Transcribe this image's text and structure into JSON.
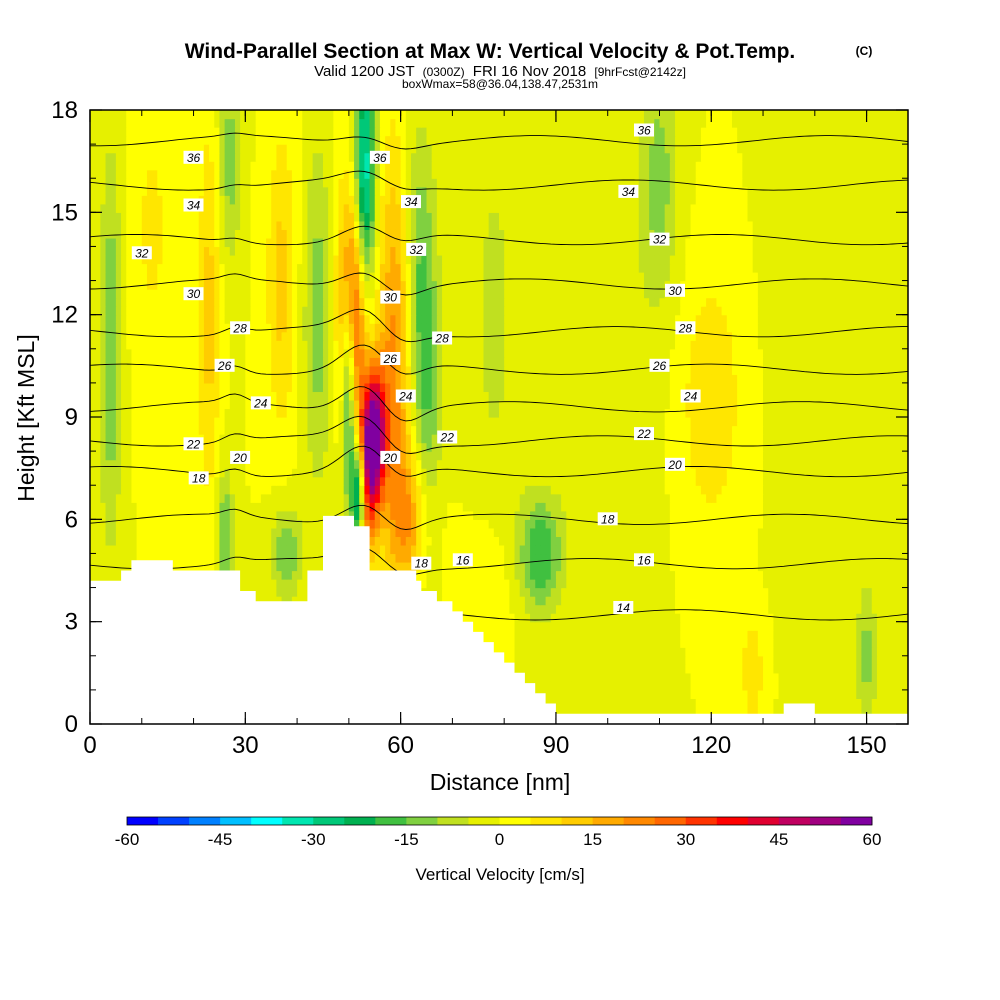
{
  "header": {
    "title": "Wind-Parallel Section at Max W: Vertical Velocity & Pot.Temp.",
    "copyright": "(C)",
    "valid_main": "Valid 1200 JST",
    "valid_utc": "(0300Z)",
    "valid_date": "FRI 16 Nov 2018",
    "forecast": "[9hrFcst@2142z]",
    "box_info": "boxWmax=58@36.04,138.47,2531m"
  },
  "chart_data": {
    "type": "heatmap",
    "xlabel": "Distance [nm]",
    "ylabel": "Height [Kft MSL]",
    "xlim": [
      0,
      158
    ],
    "ylim": [
      0,
      18
    ],
    "x_ticks": [
      "0",
      "30",
      "60",
      "90",
      "120",
      "150"
    ],
    "y_ticks": [
      "0",
      "3",
      "6",
      "9",
      "12",
      "15",
      "18"
    ],
    "x_tick_values": [
      0,
      30,
      60,
      90,
      120,
      150
    ],
    "y_tick_values": [
      0,
      3,
      6,
      9,
      12,
      15,
      18
    ],
    "colorbar": {
      "label": "Vertical Velocity [cm/s]",
      "range": [
        -60,
        60
      ],
      "tick_labels": [
        "-60",
        "-45",
        "-30",
        "-15",
        "0",
        "15",
        "30",
        "45",
        "60"
      ],
      "tick_values": [
        -60,
        -45,
        -30,
        -15,
        0,
        15,
        30,
        45,
        60
      ],
      "colors": [
        "#0000ff",
        "#0040ff",
        "#0080ff",
        "#00bfff",
        "#00ffff",
        "#00e6b0",
        "#00c878",
        "#00b050",
        "#40c040",
        "#80d040",
        "#c0e020",
        "#e6f000",
        "#ffff00",
        "#ffe600",
        "#ffcc00",
        "#ffaa00",
        "#ff8800",
        "#ff6600",
        "#ff3300",
        "#ff0000",
        "#e00030",
        "#c00060",
        "#a00080",
        "#8000a0"
      ]
    },
    "terrain_top": [
      [
        0,
        4.2
      ],
      [
        6,
        4.2
      ],
      [
        6,
        4.5
      ],
      [
        8,
        4.5
      ],
      [
        8,
        4.8
      ],
      [
        16,
        4.8
      ],
      [
        16,
        4.5
      ],
      [
        29,
        4.5
      ],
      [
        29,
        3.9
      ],
      [
        32,
        3.9
      ],
      [
        32,
        3.6
      ],
      [
        42,
        3.6
      ],
      [
        42,
        4.5
      ],
      [
        45,
        4.5
      ],
      [
        45,
        6.1
      ],
      [
        51,
        6.1
      ],
      [
        51,
        5.8
      ],
      [
        54,
        5.8
      ],
      [
        54,
        4.5
      ],
      [
        63,
        4.5
      ],
      [
        63,
        4.2
      ],
      [
        64,
        4.2
      ],
      [
        64,
        3.9
      ],
      [
        67,
        3.9
      ],
      [
        67,
        3.6
      ],
      [
        70,
        3.6
      ],
      [
        70,
        3.3
      ],
      [
        72,
        3.3
      ],
      [
        72,
        3.0
      ],
      [
        74,
        3.0
      ],
      [
        74,
        2.7
      ],
      [
        76,
        2.7
      ],
      [
        76,
        2.4
      ],
      [
        78,
        2.4
      ],
      [
        78,
        2.1
      ],
      [
        80,
        2.1
      ],
      [
        80,
        1.8
      ],
      [
        82,
        1.8
      ],
      [
        82,
        1.5
      ],
      [
        84,
        1.5
      ],
      [
        84,
        1.2
      ],
      [
        86,
        1.2
      ],
      [
        86,
        0.9
      ],
      [
        88,
        0.9
      ],
      [
        88,
        0.6
      ],
      [
        90,
        0.6
      ],
      [
        90,
        0.3
      ],
      [
        134,
        0.3
      ],
      [
        134,
        0.6
      ],
      [
        140,
        0.6
      ],
      [
        140,
        0.3
      ],
      [
        158,
        0.3
      ]
    ],
    "velocity_features": [
      {
        "x": 51,
        "y": 12.2,
        "w": 45,
        "sx": 2.0,
        "sy": 2.5
      },
      {
        "x": 55,
        "y": 8.5,
        "w": 58,
        "sx": 1.5,
        "sy": 1.3
      },
      {
        "x": 53,
        "y": 7.0,
        "w": 40,
        "sx": 1.5,
        "sy": 1.5
      },
      {
        "x": 52,
        "y": 6.8,
        "w": -55,
        "sx": 1.0,
        "sy": 1.2
      },
      {
        "x": 53,
        "y": 15.5,
        "w": -40,
        "sx": 1.5,
        "sy": 3.0
      },
      {
        "x": 50,
        "y": 10.0,
        "w": -35,
        "sx": 1.0,
        "sy": 2.5
      },
      {
        "x": 59,
        "y": 11.0,
        "w": 22,
        "sx": 2.5,
        "sy": 4.0
      },
      {
        "x": 62,
        "y": 6.0,
        "w": 18,
        "sx": 3.0,
        "sy": 1.5
      },
      {
        "x": 65,
        "y": 9.5,
        "w": -15,
        "sx": 2.0,
        "sy": 4.0
      },
      {
        "x": 63,
        "y": 13.5,
        "w": -12,
        "sx": 2.0,
        "sy": 3.0
      },
      {
        "x": 44,
        "y": 12.0,
        "w": -13,
        "sx": 2.0,
        "sy": 3.5
      },
      {
        "x": 38,
        "y": 5.0,
        "w": -15,
        "sx": 2.0,
        "sy": 1.0
      },
      {
        "x": 26,
        "y": 5.5,
        "w": -15,
        "sx": 1.2,
        "sy": 1.5
      },
      {
        "x": 27,
        "y": 16.5,
        "w": -13,
        "sx": 1.5,
        "sy": 2.0
      },
      {
        "x": 23,
        "y": 12.0,
        "w": 12,
        "sx": 1.5,
        "sy": 4.0
      },
      {
        "x": 37,
        "y": 13.0,
        "w": 12,
        "sx": 2.0,
        "sy": 3.0
      },
      {
        "x": 4,
        "y": 11.0,
        "w": -15,
        "sx": 1.5,
        "sy": 4.0
      },
      {
        "x": 87,
        "y": 5.0,
        "w": -20,
        "sx": 3.0,
        "sy": 1.2
      },
      {
        "x": 110,
        "y": 16.0,
        "w": -12,
        "sx": 2.5,
        "sy": 2.5
      },
      {
        "x": 120,
        "y": 9.5,
        "w": 10,
        "sx": 4.0,
        "sy": 2.5
      },
      {
        "x": 150,
        "y": 2.0,
        "w": -12,
        "sx": 1.5,
        "sy": 1.5
      },
      {
        "x": 128,
        "y": 1.5,
        "w": 10,
        "sx": 1.5,
        "sy": 1.0
      },
      {
        "x": 78,
        "y": 12.0,
        "w": -6,
        "sx": 4.0,
        "sy": 5.0
      },
      {
        "x": 100,
        "y": 11.0,
        "w": -5,
        "sx": 6.0,
        "sy": 5.0
      },
      {
        "x": 140,
        "y": 13.0,
        "w": -5,
        "sx": 5.0,
        "sy": 5.0
      },
      {
        "x": 12,
        "y": 14.5,
        "w": 6,
        "sx": 3.0,
        "sy": 3.0
      },
      {
        "x": 76,
        "y": 4.0,
        "w": 6,
        "sx": 4.0,
        "sy": 1.5
      }
    ],
    "isentropes": [
      {
        "theta": 14,
        "label": "14",
        "base": 3.2,
        "bump": 0.2
      },
      {
        "theta": 16,
        "label": "16",
        "base": 4.7,
        "bump": 0.5
      },
      {
        "theta": 18,
        "label": "18",
        "base": 6.0,
        "bump": 0.6
      },
      {
        "theta": 20,
        "label": "20",
        "base": 7.4,
        "bump": 0.7
      },
      {
        "theta": 22,
        "label": "22",
        "base": 8.3,
        "bump": 0.7
      },
      {
        "theta": 24,
        "label": "24",
        "base": 9.3,
        "bump": 0.8
      },
      {
        "theta": 26,
        "label": "26",
        "base": 10.4,
        "bump": 0.7
      },
      {
        "theta": 28,
        "label": "28",
        "base": 11.5,
        "bump": 0.6
      },
      {
        "theta": 30,
        "label": "30",
        "base": 12.9,
        "bump": 0.5
      },
      {
        "theta": 32,
        "label": "32",
        "base": 14.2,
        "bump": 0.4
      },
      {
        "theta": 34,
        "label": "34",
        "base": 15.8,
        "bump": 0.3
      },
      {
        "theta": 36,
        "label": "36",
        "base": 17.1,
        "bump": 0.25
      }
    ],
    "isentrope_label_positions": [
      {
        "label": "36",
        "x": 20,
        "y": 16.6
      },
      {
        "label": "34",
        "x": 20,
        "y": 15.2
      },
      {
        "label": "32",
        "x": 10,
        "y": 13.8
      },
      {
        "label": "30",
        "x": 20,
        "y": 12.6
      },
      {
        "label": "28",
        "x": 29,
        "y": 11.6
      },
      {
        "label": "26",
        "x": 26,
        "y": 10.5
      },
      {
        "label": "24",
        "x": 33,
        "y": 9.4
      },
      {
        "label": "22",
        "x": 20,
        "y": 8.2
      },
      {
        "label": "20",
        "x": 29,
        "y": 7.8
      },
      {
        "label": "18",
        "x": 21,
        "y": 7.2
      },
      {
        "label": "36",
        "x": 56,
        "y": 16.6
      },
      {
        "label": "34",
        "x": 62,
        "y": 15.3
      },
      {
        "label": "32",
        "x": 63,
        "y": 13.9
      },
      {
        "label": "30",
        "x": 58,
        "y": 12.5
      },
      {
        "label": "26",
        "x": 58,
        "y": 10.7
      },
      {
        "label": "28",
        "x": 68,
        "y": 11.3
      },
      {
        "label": "24",
        "x": 61,
        "y": 9.6
      },
      {
        "label": "22",
        "x": 69,
        "y": 8.4
      },
      {
        "label": "20",
        "x": 58,
        "y": 7.8
      },
      {
        "label": "18",
        "x": 64,
        "y": 4.7
      },
      {
        "label": "16",
        "x": 72,
        "y": 4.8
      },
      {
        "label": "36",
        "x": 107,
        "y": 17.4
      },
      {
        "label": "34",
        "x": 104,
        "y": 15.6
      },
      {
        "label": "32",
        "x": 110,
        "y": 14.2
      },
      {
        "label": "30",
        "x": 113,
        "y": 12.7
      },
      {
        "label": "28",
        "x": 115,
        "y": 11.6
      },
      {
        "label": "26",
        "x": 110,
        "y": 10.5
      },
      {
        "label": "24",
        "x": 116,
        "y": 9.6
      },
      {
        "label": "22",
        "x": 107,
        "y": 8.5
      },
      {
        "label": "20",
        "x": 113,
        "y": 7.6
      },
      {
        "label": "18",
        "x": 100,
        "y": 6.0
      },
      {
        "label": "16",
        "x": 107,
        "y": 4.8
      },
      {
        "label": "14",
        "x": 103,
        "y": 3.4
      }
    ]
  }
}
